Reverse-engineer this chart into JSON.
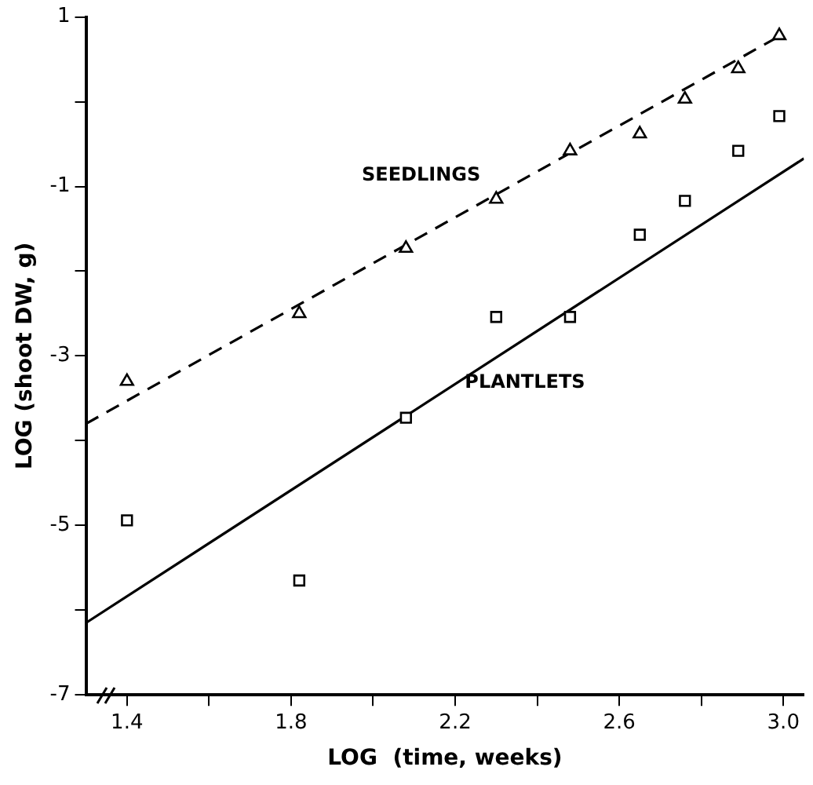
{
  "chart_data": {
    "type": "scatter",
    "xlabel": "LOG  (time, weeks)",
    "ylabel": "LOG (shoot DW, g)",
    "xlim": [
      1.3,
      3.05
    ],
    "ylim": [
      -7,
      1
    ],
    "xticks": [
      {
        "value": 1.4,
        "label": "1.4"
      },
      {
        "value": 1.6,
        "label": null
      },
      {
        "value": 1.8,
        "label": "1.8"
      },
      {
        "value": 2.0,
        "label": null
      },
      {
        "value": 2.2,
        "label": "2.2"
      },
      {
        "value": 2.4,
        "label": null
      },
      {
        "value": 2.6,
        "label": "2.6"
      },
      {
        "value": 2.8,
        "label": null
      },
      {
        "value": 3.0,
        "label": "3.0"
      }
    ],
    "yticks": [
      -7,
      {
        "value": -6,
        "label": null
      },
      -5,
      {
        "value": -4,
        "label": null
      },
      -3,
      {
        "value": -2,
        "label": null
      },
      -1,
      {
        "value": 0,
        "label": null
      },
      1
    ],
    "grid": false,
    "legend": false,
    "series": [
      {
        "name": "SEEDLINGS",
        "marker": "triangle",
        "color": "#000000",
        "x": [
          1.4,
          1.82,
          2.08,
          2.3,
          2.48,
          2.65,
          2.76,
          2.89,
          2.99
        ],
        "values": [
          -3.3,
          -2.5,
          -1.73,
          -1.15,
          -0.58,
          -0.38,
          0.03,
          0.39,
          0.78
        ]
      },
      {
        "name": "PLANTLETS",
        "marker": "square",
        "color": "#000000",
        "x": [
          1.4,
          1.82,
          2.08,
          2.3,
          2.48,
          2.65,
          2.76,
          2.89,
          2.99
        ],
        "values": [
          -4.94,
          -5.65,
          -3.73,
          -2.54,
          -2.54,
          -1.57,
          -1.17,
          -0.58,
          -0.17
        ]
      },
      {
        "type": "line",
        "line_style": "dashed",
        "marker": "none",
        "color": "#000000",
        "x": [
          1.3,
          3.0
        ],
        "values": [
          -3.8,
          0.8
        ]
      },
      {
        "type": "line",
        "line_style": "solid",
        "marker": "none",
        "color": "#000000",
        "x": [
          1.3,
          3.05
        ],
        "values": [
          -6.15,
          -0.67
        ]
      }
    ]
  }
}
